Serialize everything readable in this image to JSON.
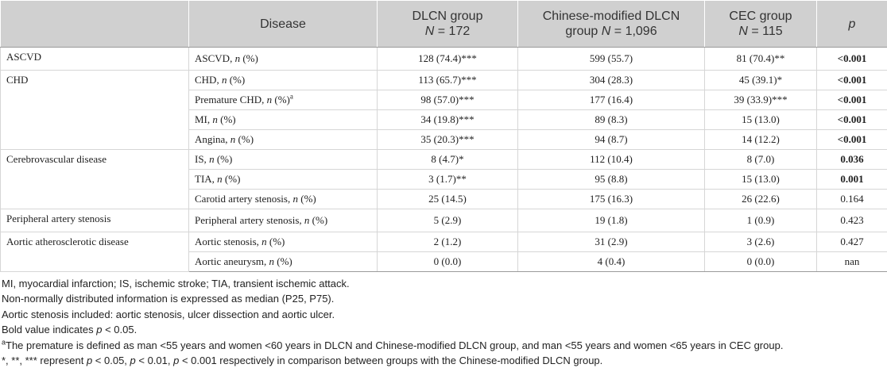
{
  "headers": {
    "col2": "Disease",
    "col3_line1": "DLCN group",
    "col3_line2_n": "N",
    "col3_line2_val": " = 172",
    "col4_line1": "Chinese-modified DLCN",
    "col4_line2_pre": "group ",
    "col4_line2_n": "N",
    "col4_line2_val": " = 1,096",
    "col5_line1": "CEC group",
    "col5_line2_n": "N",
    "col5_line2_val": " = 115",
    "col6": "p"
  },
  "groups": {
    "ascvd": "ASCVD",
    "chd": "CHD",
    "cerebro": "Cerebrovascular disease",
    "peripheral": "Peripheral artery stenosis",
    "aortic": "Aortic atherosclerotic disease"
  },
  "rows": [
    {
      "label": "ASCVD, ",
      "n": "n",
      "suffix": " (%)",
      "sup": "",
      "dlcn": "128 (74.4)***",
      "chinese": "599 (55.7)",
      "cec": "81 (70.4)**",
      "p": "<0.001",
      "bold": true
    },
    {
      "label": "CHD, ",
      "n": "n",
      "suffix": " (%)",
      "sup": "",
      "dlcn": "113 (65.7)***",
      "chinese": "304 (28.3)",
      "cec": "45 (39.1)*",
      "p": "<0.001",
      "bold": true
    },
    {
      "label": "Premature CHD, ",
      "n": "n",
      "suffix": " (%)",
      "sup": "a",
      "dlcn": "98 (57.0)***",
      "chinese": "177 (16.4)",
      "cec": "39 (33.9)***",
      "p": "<0.001",
      "bold": true
    },
    {
      "label": "MI, ",
      "n": "n",
      "suffix": " (%)",
      "sup": "",
      "dlcn": "34 (19.8)***",
      "chinese": "89 (8.3)",
      "cec": "15 (13.0)",
      "p": "<0.001",
      "bold": true
    },
    {
      "label": "Angina, ",
      "n": "n",
      "suffix": " (%)",
      "sup": "",
      "dlcn": "35 (20.3)***",
      "chinese": "94 (8.7)",
      "cec": "14 (12.2)",
      "p": "<0.001",
      "bold": true
    },
    {
      "label": "IS, ",
      "n": "n",
      "suffix": " (%)",
      "sup": "",
      "dlcn": "8 (4.7)*",
      "chinese": "112 (10.4)",
      "cec": "8 (7.0)",
      "p": "0.036",
      "bold": true
    },
    {
      "label": "TIA, ",
      "n": "n",
      "suffix": " (%)",
      "sup": "",
      "dlcn": "3 (1.7)**",
      "chinese": "95 (8.8)",
      "cec": "15 (13.0)",
      "p": "0.001",
      "bold": true
    },
    {
      "label": "Carotid artery stenosis, ",
      "n": "n",
      "suffix": " (%)",
      "sup": "",
      "dlcn": "25 (14.5)",
      "chinese": "175 (16.3)",
      "cec": "26 (22.6)",
      "p": "0.164",
      "bold": false
    },
    {
      "label": "Peripheral artery stenosis, ",
      "n": "n",
      "suffix": " (%)",
      "sup": "",
      "dlcn": "5 (2.9)",
      "chinese": "19 (1.8)",
      "cec": "1 (0.9)",
      "p": "0.423",
      "bold": false
    },
    {
      "label": "Aortic stenosis, ",
      "n": "n",
      "suffix": " (%)",
      "sup": "",
      "dlcn": "2 (1.2)",
      "chinese": "31 (2.9)",
      "cec": "3 (2.6)",
      "p": "0.427",
      "bold": false
    },
    {
      "label": "Aortic aneurysm, ",
      "n": "n",
      "suffix": " (%)",
      "sup": "",
      "dlcn": "0 (0.0)",
      "chinese": "4 (0.4)",
      "cec": "0 (0.0)",
      "p": "nan",
      "bold": false
    }
  ],
  "notes": {
    "n1": "MI, myocardial infarction; IS, ischemic stroke; TIA, transient ischemic attack.",
    "n2": "Non-normally distributed information is expressed as median (P25, P75).",
    "n3": "Aortic stenosis included: aortic stenosis, ulcer dissection and aortic ulcer.",
    "n4_pre": "Bold value indicates ",
    "n4_p": "p",
    "n4_post": " < 0.05.",
    "n5_sup": "a",
    "n5": "The premature is defined as man <55 years and women <60 years in DLCN and Chinese-modified DLCN group, and man <55 years and women <65 years in CEC group.",
    "n6_a": "*, **, *** represent ",
    "n6_p1": "p",
    "n6_b": " < 0.05, ",
    "n6_p2": "p",
    "n6_c": " < 0.01, ",
    "n6_p3": "p",
    "n6_d": " < 0.001 respectively in comparison between groups with the Chinese-modified DLCN group."
  }
}
